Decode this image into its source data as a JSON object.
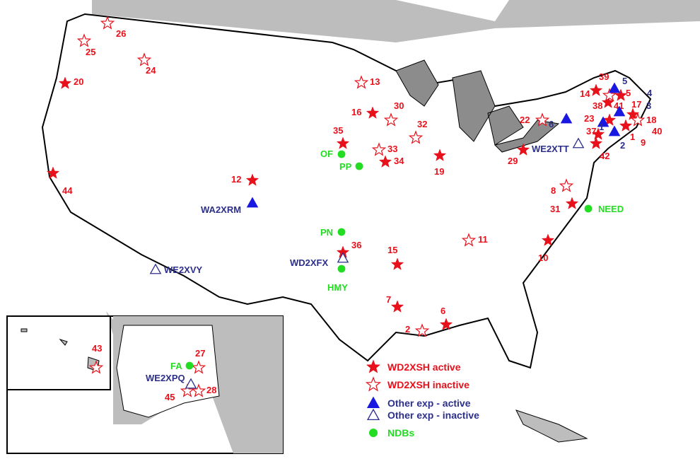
{
  "colors": {
    "active_red": "#e8101a",
    "blue": "#1818e0",
    "label_blue": "#2c2f8c",
    "ndb_green": "#22dd22",
    "water": "#bdbdbd",
    "lakes": "#8c8c8c"
  },
  "legend": [
    {
      "symbol": "star-filled",
      "label": "WD2XSH active",
      "color": "#e8101a"
    },
    {
      "symbol": "star-outline",
      "label": "WD2XSH inactive",
      "color": "#e8101a"
    },
    {
      "symbol": "triangle-filled",
      "label": "Other exp - active",
      "color": "#2c2f8c"
    },
    {
      "symbol": "triangle-outline",
      "label": "Other exp - inactive",
      "color": "#2c2f8c"
    },
    {
      "symbol": "circle-filled",
      "label": "NDBs",
      "color": "#22dd22"
    }
  ],
  "markers": [
    {
      "id": "20",
      "type": "star-filled",
      "label": "20"
    },
    {
      "id": "44",
      "type": "star-filled",
      "label": "44"
    },
    {
      "id": "12",
      "type": "star-filled",
      "label": "12"
    },
    {
      "id": "35",
      "type": "star-filled",
      "label": "35"
    },
    {
      "id": "16",
      "type": "star-filled",
      "label": "16"
    },
    {
      "id": "34",
      "type": "star-filled",
      "label": "34"
    },
    {
      "id": "19",
      "type": "star-filled",
      "label": "19"
    },
    {
      "id": "36",
      "type": "star-filled",
      "label": "36"
    },
    {
      "id": "15",
      "type": "star-filled",
      "label": "15"
    },
    {
      "id": "7",
      "type": "star-filled",
      "label": "7"
    },
    {
      "id": "6",
      "type": "star-filled",
      "label": "6"
    },
    {
      "id": "29",
      "type": "star-filled",
      "label": "29"
    },
    {
      "id": "31",
      "type": "star-filled",
      "label": "31"
    },
    {
      "id": "10",
      "type": "star-filled",
      "label": "10"
    },
    {
      "id": "14",
      "type": "star-filled",
      "label": "14"
    },
    {
      "id": "5r",
      "type": "star-filled",
      "label": "5"
    },
    {
      "id": "38",
      "type": "star-filled",
      "label": "38"
    },
    {
      "id": "17",
      "type": "star-filled",
      "label": "17"
    },
    {
      "id": "23",
      "type": "star-filled",
      "label": "23"
    },
    {
      "id": "1",
      "type": "star-filled",
      "label": "1"
    },
    {
      "id": "37",
      "type": "star-filled",
      "label": "37"
    },
    {
      "id": "42",
      "type": "star-filled",
      "label": "42"
    },
    {
      "id": "26",
      "type": "star-outline",
      "label": "26"
    },
    {
      "id": "25",
      "type": "star-outline",
      "label": "25"
    },
    {
      "id": "24",
      "type": "star-outline",
      "label": "24"
    },
    {
      "id": "13",
      "type": "star-outline",
      "label": "13"
    },
    {
      "id": "30",
      "type": "star-outline",
      "label": "30"
    },
    {
      "id": "32",
      "type": "star-outline",
      "label": "32"
    },
    {
      "id": "33",
      "type": "star-outline",
      "label": "33"
    },
    {
      "id": "11",
      "type": "star-outline",
      "label": "11"
    },
    {
      "id": "8",
      "type": "star-outline",
      "label": "8"
    },
    {
      "id": "2",
      "type": "star-outline",
      "label": "2"
    },
    {
      "id": "22",
      "type": "star-outline",
      "label": "22"
    },
    {
      "id": "41",
      "type": "star-outline",
      "label": "41"
    },
    {
      "id": "18",
      "type": "star-outline",
      "label": "18"
    },
    {
      "id": "43",
      "type": "star-outline",
      "label": "43"
    },
    {
      "id": "27",
      "type": "star-outline",
      "label": "27"
    },
    {
      "id": "45",
      "type": "star-outline",
      "label": "45"
    },
    {
      "id": "28",
      "type": "star-outline",
      "label": "28"
    },
    {
      "id": "39",
      "type": "label-red",
      "label": "39"
    },
    {
      "id": "40",
      "type": "label-red",
      "label": "40"
    },
    {
      "id": "9",
      "type": "label-red",
      "label": "9"
    },
    {
      "id": "WA2XRM",
      "type": "triangle-filled",
      "label": "WA2XRM"
    },
    {
      "id": "6b",
      "type": "triangle-filled",
      "label": "6"
    },
    {
      "id": "5b",
      "type": "triangle-filled",
      "label": "5"
    },
    {
      "id": "3b",
      "type": "triangle-filled",
      "label": "3"
    },
    {
      "id": "2b",
      "type": "triangle-filled",
      "label": "2"
    },
    {
      "id": "1b",
      "type": "triangle-filled",
      "label": "1"
    },
    {
      "id": "4b",
      "type": "label-blue",
      "label": "4"
    },
    {
      "id": "WE2XVY",
      "type": "triangle-outline",
      "label": "WE2XVY"
    },
    {
      "id": "WD2XFX",
      "type": "triangle-outline",
      "label": "WD2XFX"
    },
    {
      "id": "WE2XTT",
      "type": "triangle-outline",
      "label": "WE2XTT"
    },
    {
      "id": "WE2XPQ",
      "type": "triangle-outline",
      "label": "WE2XPQ"
    },
    {
      "id": "OF",
      "type": "circle-filled",
      "label": "OF"
    },
    {
      "id": "PP",
      "type": "circle-filled",
      "label": "PP"
    },
    {
      "id": "PN",
      "type": "circle-filled",
      "label": "PN"
    },
    {
      "id": "HMY",
      "type": "circle-filled",
      "label": "HMY"
    },
    {
      "id": "NEED",
      "type": "circle-filled",
      "label": "NEED"
    },
    {
      "id": "FA",
      "type": "circle-filled",
      "label": "FA"
    }
  ]
}
